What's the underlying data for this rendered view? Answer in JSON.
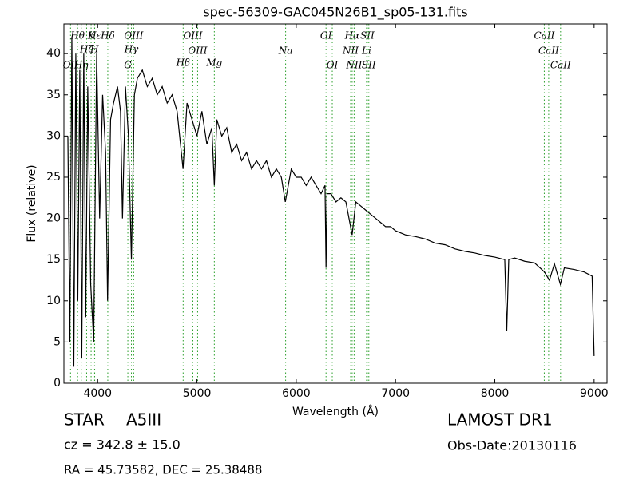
{
  "chart_data": {
    "type": "line",
    "title": "spec-56309-GAC045N26B1_sp05-131.fits",
    "x_label": "Wavelength (Å)",
    "y_label": "Flux (relative)",
    "xlim": [
      3660,
      9130
    ],
    "ylim": [
      0,
      43.6
    ],
    "xticks": [
      4000,
      5000,
      6000,
      7000,
      8000,
      9000
    ],
    "yticks": [
      0,
      5,
      10,
      15,
      20,
      25,
      30,
      35,
      40
    ],
    "grid": false,
    "series": [
      {
        "color": "#000000",
        "x": [
          3700,
          3720,
          3740,
          3760,
          3780,
          3800,
          3820,
          3840,
          3860,
          3880,
          3900,
          3930,
          3960,
          3990,
          4020,
          4050,
          4080,
          4100,
          4130,
          4160,
          4200,
          4230,
          4250,
          4280,
          4310,
          4340,
          4370,
          4400,
          4450,
          4500,
          4550,
          4600,
          4650,
          4700,
          4750,
          4800,
          4860,
          4900,
          4950,
          5000,
          5050,
          5100,
          5150,
          5175,
          5200,
          5250,
          5300,
          5350,
          5400,
          5450,
          5500,
          5550,
          5600,
          5650,
          5700,
          5750,
          5800,
          5850,
          5890,
          5950,
          6000,
          6050,
          6100,
          6150,
          6200,
          6250,
          6290,
          6300,
          6310,
          6350,
          6400,
          6450,
          6500,
          6563,
          6600,
          6650,
          6700,
          6750,
          6800,
          6850,
          6900,
          6950,
          7000,
          7100,
          7200,
          7300,
          7400,
          7500,
          7600,
          7700,
          7800,
          7900,
          8000,
          8100,
          8120,
          8140,
          8200,
          8300,
          8400,
          8500,
          8550,
          8600,
          8660,
          8700,
          8800,
          8900,
          8980,
          9000
        ],
        "values": [
          30,
          5,
          42,
          2,
          40,
          10,
          38,
          3,
          40,
          8,
          36,
          12,
          5,
          40,
          20,
          35,
          28,
          10,
          32,
          34,
          36,
          33,
          20,
          36,
          30,
          15,
          35,
          37,
          38,
          36,
          37,
          35,
          36,
          34,
          35,
          33,
          26,
          34,
          32,
          30,
          33,
          29,
          31,
          24,
          32,
          30,
          31,
          28,
          29,
          27,
          28,
          26,
          27,
          26,
          27,
          25,
          26,
          25,
          22,
          26,
          25,
          25,
          24,
          25,
          24,
          23,
          24,
          14,
          23,
          23,
          22,
          22.5,
          22,
          18,
          22,
          21.5,
          21,
          20.5,
          20,
          19.5,
          19,
          19,
          18.5,
          18,
          17.8,
          17.5,
          17,
          16.8,
          16.3,
          16,
          15.8,
          15.5,
          15.3,
          15,
          6.3,
          15,
          15.2,
          14.8,
          14.6,
          13.5,
          12.5,
          14.5,
          12,
          14,
          13.8,
          13.5,
          13,
          3.3
        ]
      }
    ],
    "line_color": "#2ca02c",
    "lines": [
      {
        "x": 3727,
        "label": "OII"
      },
      {
        "x": 3798,
        "label": "Hθ"
      },
      {
        "x": 3835,
        "label": "Hη"
      },
      {
        "x": 3889,
        "label": "Hζ"
      },
      {
        "x": 3934,
        "label": "K"
      },
      {
        "x": 3969,
        "label": "H"
      },
      {
        "x": 3970,
        "label": "Hε"
      },
      {
        "x": 4102,
        "label": "Hδ"
      },
      {
        "x": 4304,
        "label": "G"
      },
      {
        "x": 4340,
        "label": "Hγ"
      },
      {
        "x": 4363,
        "label": "OIII"
      },
      {
        "x": 4861,
        "label": "Hβ"
      },
      {
        "x": 4959,
        "label": "OIII"
      },
      {
        "x": 5007,
        "label": "OIII"
      },
      {
        "x": 5175,
        "label": "Mg"
      },
      {
        "x": 5893,
        "label": "Na"
      },
      {
        "x": 6300,
        "label": "OI"
      },
      {
        "x": 6363,
        "label": "OI"
      },
      {
        "x": 6548,
        "label": "NII"
      },
      {
        "x": 6563,
        "label": "Hα"
      },
      {
        "x": 6583,
        "label": "NII"
      },
      {
        "x": 6708,
        "label": "Li"
      },
      {
        "x": 6716,
        "label": "SII"
      },
      {
        "x": 6731,
        "label": "SII"
      },
      {
        "x": 8498,
        "label": "CaII"
      },
      {
        "x": 8542,
        "label": "CaII"
      },
      {
        "x": 8662,
        "label": "CaII"
      }
    ],
    "object_class": "STAR",
    "subclass": "A5III",
    "survey": "LAMOST DR1",
    "redshift": "cz = 342.8 ± 15.0",
    "obs_date": "Obs-Date:20130116",
    "coordinates": "RA = 45.73582, DEC = 25.38488"
  }
}
